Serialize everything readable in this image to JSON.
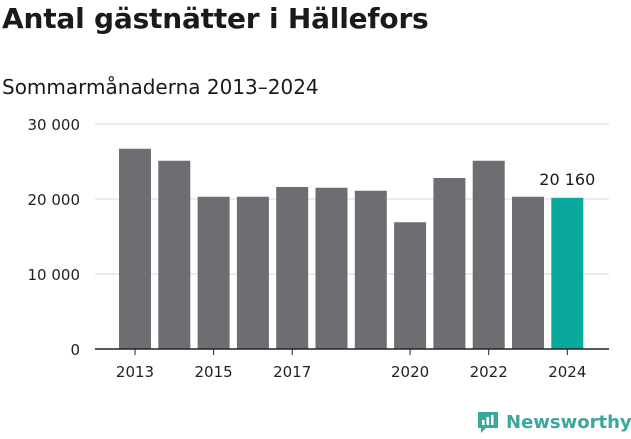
{
  "title": "Antal gästnätter i Hällefors",
  "subtitle": "Sommarmånaderna 2013–2024",
  "brand": "Newsworthy",
  "colors": {
    "bar": "#6e6d72",
    "highlight": "#0aa99d",
    "grid": "#d9d9d9",
    "axis": "#222222",
    "brand": "#3aa79a"
  },
  "chart_data": {
    "type": "bar",
    "title": "Antal gästnätter i Hällefors",
    "subtitle": "Sommarmånaderna 2013–2024",
    "categories": [
      "2013",
      "2014",
      "2015",
      "2016",
      "2017",
      "2018",
      "2019",
      "2020",
      "2021",
      "2022",
      "2023",
      "2024"
    ],
    "values": [
      26700,
      25100,
      20300,
      20300,
      21600,
      21500,
      21100,
      16900,
      22800,
      25100,
      20300,
      20160
    ],
    "x_tick_labels": [
      "2013",
      "",
      "2015",
      "",
      "2017",
      "",
      "",
      "2020",
      "",
      "2022",
      "",
      "2024"
    ],
    "y_ticks": [
      0,
      10000,
      20000,
      30000
    ],
    "y_tick_labels": [
      "0",
      "10 000",
      "20 000",
      "30 000"
    ],
    "ylim": [
      0,
      30000
    ],
    "highlight_index": 11,
    "data_labels": [
      {
        "index": 11,
        "text": "20 160"
      }
    ],
    "grid": true,
    "legend": "none",
    "xlabel": "",
    "ylabel": ""
  }
}
